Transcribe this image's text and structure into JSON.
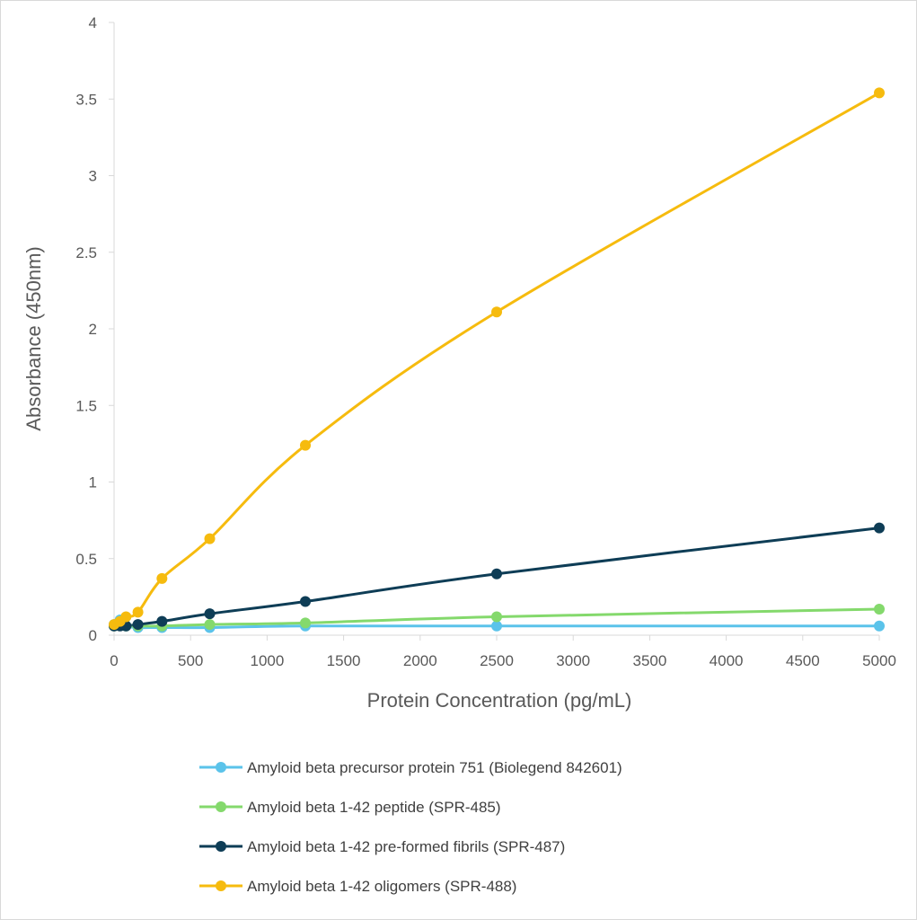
{
  "chart_data": {
    "type": "line",
    "title": "",
    "xlabel": "Protein Concentration (pg/mL)",
    "ylabel": "Absorbance (450nm)",
    "xlim": [
      0,
      5000
    ],
    "ylim": [
      0,
      4
    ],
    "x_ticks": [
      "0",
      "500",
      "1000",
      "1500",
      "2000",
      "2500",
      "3000",
      "3500",
      "4000",
      "4500",
      "5000"
    ],
    "y_ticks": [
      "0",
      "0.5",
      "1",
      "1.5",
      "2",
      "2.5",
      "3",
      "3.5",
      "4"
    ],
    "grid": false,
    "legend_position": "bottom",
    "series": [
      {
        "name": "Amyloid beta precursor protein 751 (Biolegend 842601)",
        "color": "#5bc3ea",
        "x": [
          0,
          39,
          78,
          156,
          313,
          625,
          1250,
          2500,
          5000
        ],
        "y": [
          0.07,
          0.1,
          0.06,
          0.05,
          0.05,
          0.05,
          0.06,
          0.06,
          0.06
        ]
      },
      {
        "name": "Amyloid beta 1-42 peptide (SPR-485)",
        "color": "#84d96c",
        "x": [
          0,
          39,
          78,
          156,
          313,
          625,
          1250,
          2500,
          5000
        ],
        "y": [
          0.06,
          0.07,
          0.06,
          0.06,
          0.06,
          0.07,
          0.08,
          0.12,
          0.17
        ]
      },
      {
        "name": "Amyloid beta 1-42 pre-formed fibrils (SPR-487)",
        "color": "#0e3d56",
        "x": [
          0,
          39,
          78,
          156,
          313,
          625,
          1250,
          2500,
          5000
        ],
        "y": [
          0.06,
          0.06,
          0.06,
          0.07,
          0.09,
          0.14,
          0.22,
          0.4,
          0.7
        ]
      },
      {
        "name": "Amyloid beta 1-42 oligomers (SPR-488)",
        "color": "#f6bb0e",
        "x": [
          0,
          39,
          78,
          156,
          313,
          625,
          1250,
          2500,
          5000
        ],
        "y": [
          0.07,
          0.09,
          0.12,
          0.15,
          0.37,
          0.63,
          1.24,
          2.11,
          3.54
        ]
      }
    ]
  }
}
